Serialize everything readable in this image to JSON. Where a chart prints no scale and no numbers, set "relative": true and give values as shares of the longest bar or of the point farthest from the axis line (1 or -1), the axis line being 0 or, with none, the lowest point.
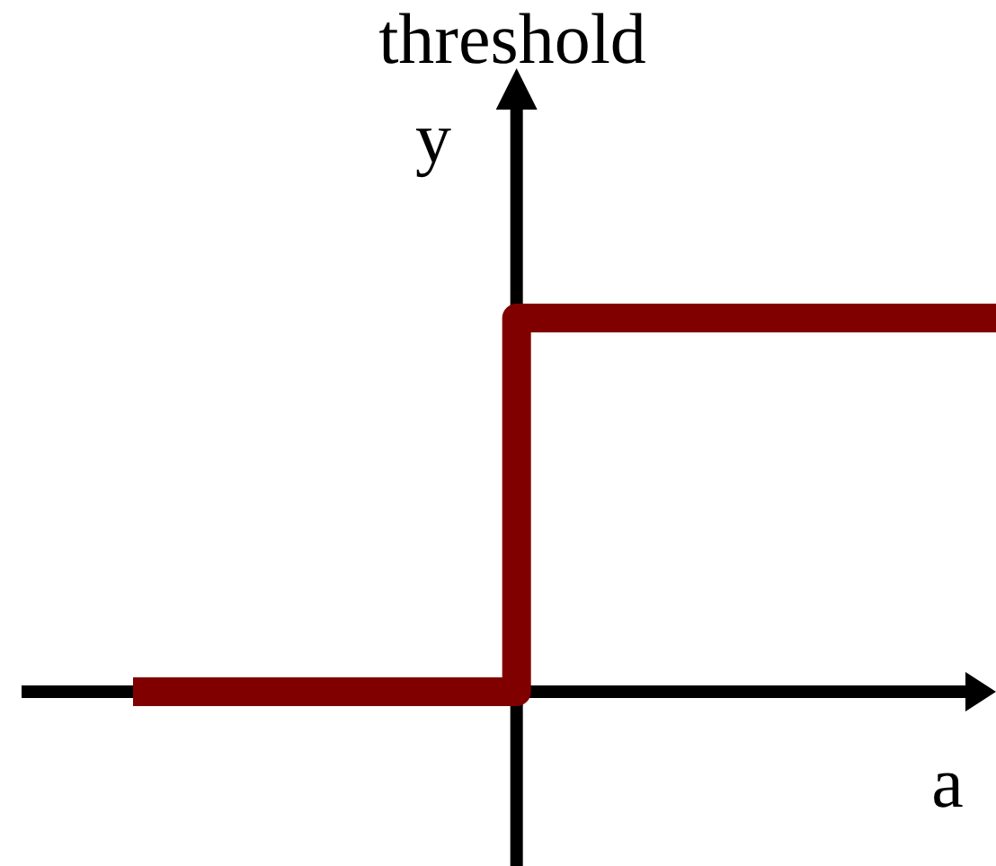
{
  "chart_data": {
    "type": "step",
    "title": "threshold",
    "xlabel": "a",
    "ylabel": "y",
    "relative": true,
    "categories": [
      null,
      null,
      null,
      null,
      null,
      null,
      null,
      null,
      null,
      null
    ],
    "series": [
      {
        "color": "#800000",
        "values": [
          0,
          0,
          0,
          0,
          1,
          1,
          1,
          1,
          1,
          1
        ]
      }
    ]
  }
}
